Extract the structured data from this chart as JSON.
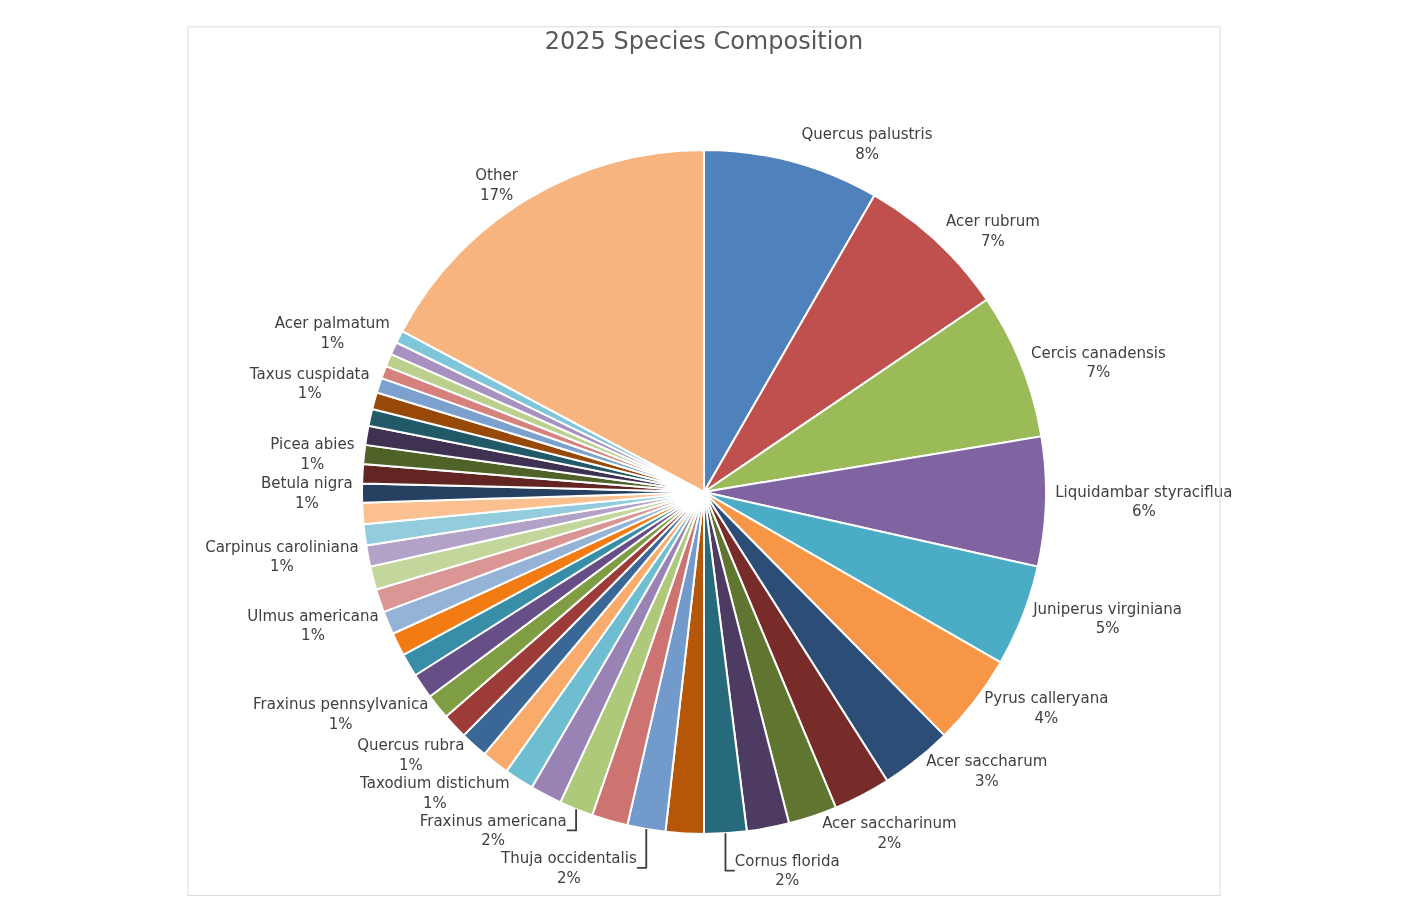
{
  "chart_data": {
    "type": "pie",
    "title": "2025 Species Composition",
    "categories": [
      "Quercus palustris",
      "Acer rubrum",
      "Cercis canadensis",
      "Liquidambar styraciflua",
      "Juniperus virginiana",
      "Pyrus calleryana",
      "Acer saccharum",
      null,
      "Acer saccharinum",
      null,
      "Cornus florida",
      null,
      "Thuja occidentalis",
      null,
      "Fraxinus americana",
      null,
      "Taxodium distichum",
      null,
      "Quercus rubra",
      null,
      "Fraxinus pennsylvanica",
      null,
      null,
      null,
      "Ulmus americana",
      null,
      null,
      "Carpinus caroliniana",
      null,
      null,
      "Betula nigra",
      null,
      "Picea abies",
      null,
      null,
      null,
      "Taxus cuspidata",
      null,
      null,
      null,
      "Acer palmatum",
      "Other"
    ],
    "values": [
      8.3,
      7.2,
      6.9,
      6.1,
      4.8,
      4.3,
      3.4,
      2.7,
      2.3,
      2.0,
      2.0,
      1.8,
      1.8,
      1.7,
      1.6,
      1.5,
      1.4,
      1.3,
      1.3,
      1.2,
      1.2,
      1.2,
      1.1,
      1.1,
      1.1,
      1.1,
      1.1,
      1.0,
      1.0,
      1.0,
      0.9,
      0.9,
      0.9,
      0.9,
      0.8,
      0.8,
      0.7,
      0.6,
      0.6,
      0.6,
      0.6,
      17.2
    ],
    "value_labels": [
      "8%",
      "7%",
      "7%",
      "6%",
      "5%",
      "4%",
      "3%",
      null,
      "2%",
      null,
      "2%",
      null,
      "2%",
      null,
      "2%",
      null,
      "1%",
      null,
      "1%",
      null,
      "1%",
      null,
      null,
      null,
      "1%",
      null,
      null,
      "1%",
      null,
      null,
      "1%",
      null,
      "1%",
      null,
      null,
      null,
      "1%",
      null,
      null,
      null,
      "1%",
      "17%"
    ],
    "colors": [
      "#4f81bd",
      "#c0504d",
      "#9bbb59",
      "#8064a2",
      "#4bacc6",
      "#f79646",
      "#2c4d75",
      "#772c2a",
      "#5f7530",
      "#4d3b62",
      "#276a7c",
      "#b65708",
      "#729aca",
      "#cd7371",
      "#afc97a",
      "#9983b5",
      "#6fbdd1",
      "#f9ab6b",
      "#3a6795",
      "#9c3b38",
      "#7f9d42",
      "#664f86",
      "#378ea6",
      "#f27b14",
      "#95b3d7",
      "#d99694",
      "#c3d69b",
      "#b2a2c7",
      "#93cddd",
      "#fac090",
      "#254061",
      "#632523",
      "#4f6228",
      "#3f3151",
      "#215968",
      "#984807",
      "#7da1ce",
      "#d7817f",
      "#bbd08d",
      "#a691c0",
      "#80c6da",
      "#f8b47e"
    ],
    "legend": false
  }
}
